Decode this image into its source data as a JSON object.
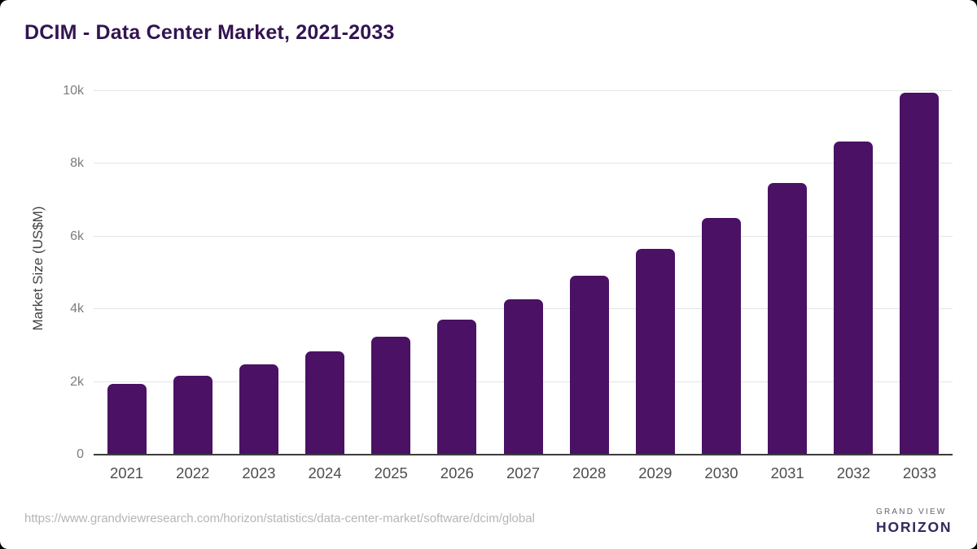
{
  "title": "DCIM - Data Center Market, 2021-2033",
  "chart_data": {
    "type": "bar",
    "categories": [
      "2021",
      "2022",
      "2023",
      "2024",
      "2025",
      "2026",
      "2027",
      "2028",
      "2029",
      "2030",
      "2031",
      "2032",
      "2033"
    ],
    "values": [
      1950,
      2180,
      2490,
      2840,
      3240,
      3720,
      4280,
      4930,
      5670,
      6500,
      7480,
      8620,
      9950
    ],
    "title": "DCIM - Data Center Market, 2021-2033",
    "xlabel": "",
    "ylabel": "Market Size (US$M)",
    "ylim": [
      0,
      10000
    ],
    "yticks": [
      0,
      2000,
      4000,
      6000,
      8000,
      10000
    ],
    "ytick_labels": [
      "0",
      "2k",
      "4k",
      "6k",
      "8k",
      "10k"
    ],
    "grid": true,
    "legend": false,
    "bar_color": "#4a1164"
  },
  "footer": {
    "source_url": "https://www.grandviewresearch.com/horizon/statistics/data-center-market/software/dcim/global",
    "brand_top": "GRAND VIEW",
    "brand_bottom": "HORIZON"
  },
  "colors": {
    "title_text": "#331450",
    "bar": "#4a1164",
    "gridline": "#e4e4e4",
    "axis_line": "#3d3d3d",
    "ytick_text": "#7d7d7d",
    "xtick_text": "#4d4d4d",
    "logo_purple": "#2d1a47",
    "logo_blue": "#5ec1e8"
  }
}
